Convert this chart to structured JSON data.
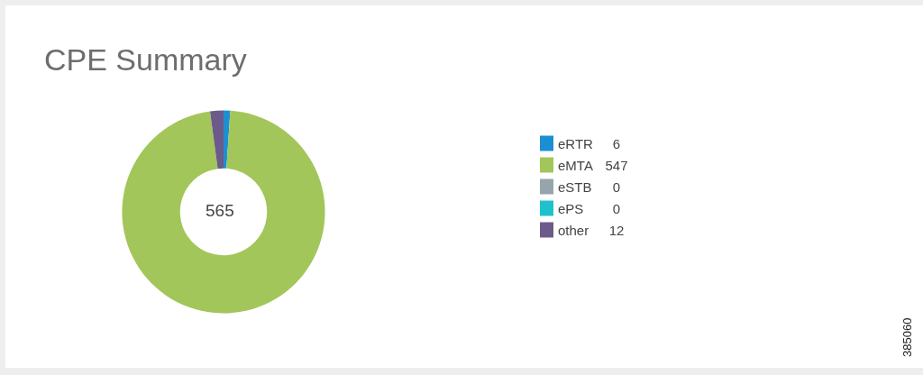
{
  "chart_data": {
    "type": "donut",
    "title": "CPE Summary",
    "categories": [
      "eRTR",
      "eMTA",
      "eSTB",
      "ePS",
      "other"
    ],
    "values": [
      6,
      547,
      0,
      0,
      12
    ],
    "colors": [
      "#1b8fd2",
      "#a2c65a",
      "#95a5ab",
      "#1fc2cc",
      "#6c5a8a"
    ],
    "value_labels": [
      "6",
      "547",
      "0",
      "0",
      "12"
    ],
    "legend": "right",
    "annotations": [
      "565",
      "385060"
    ]
  }
}
